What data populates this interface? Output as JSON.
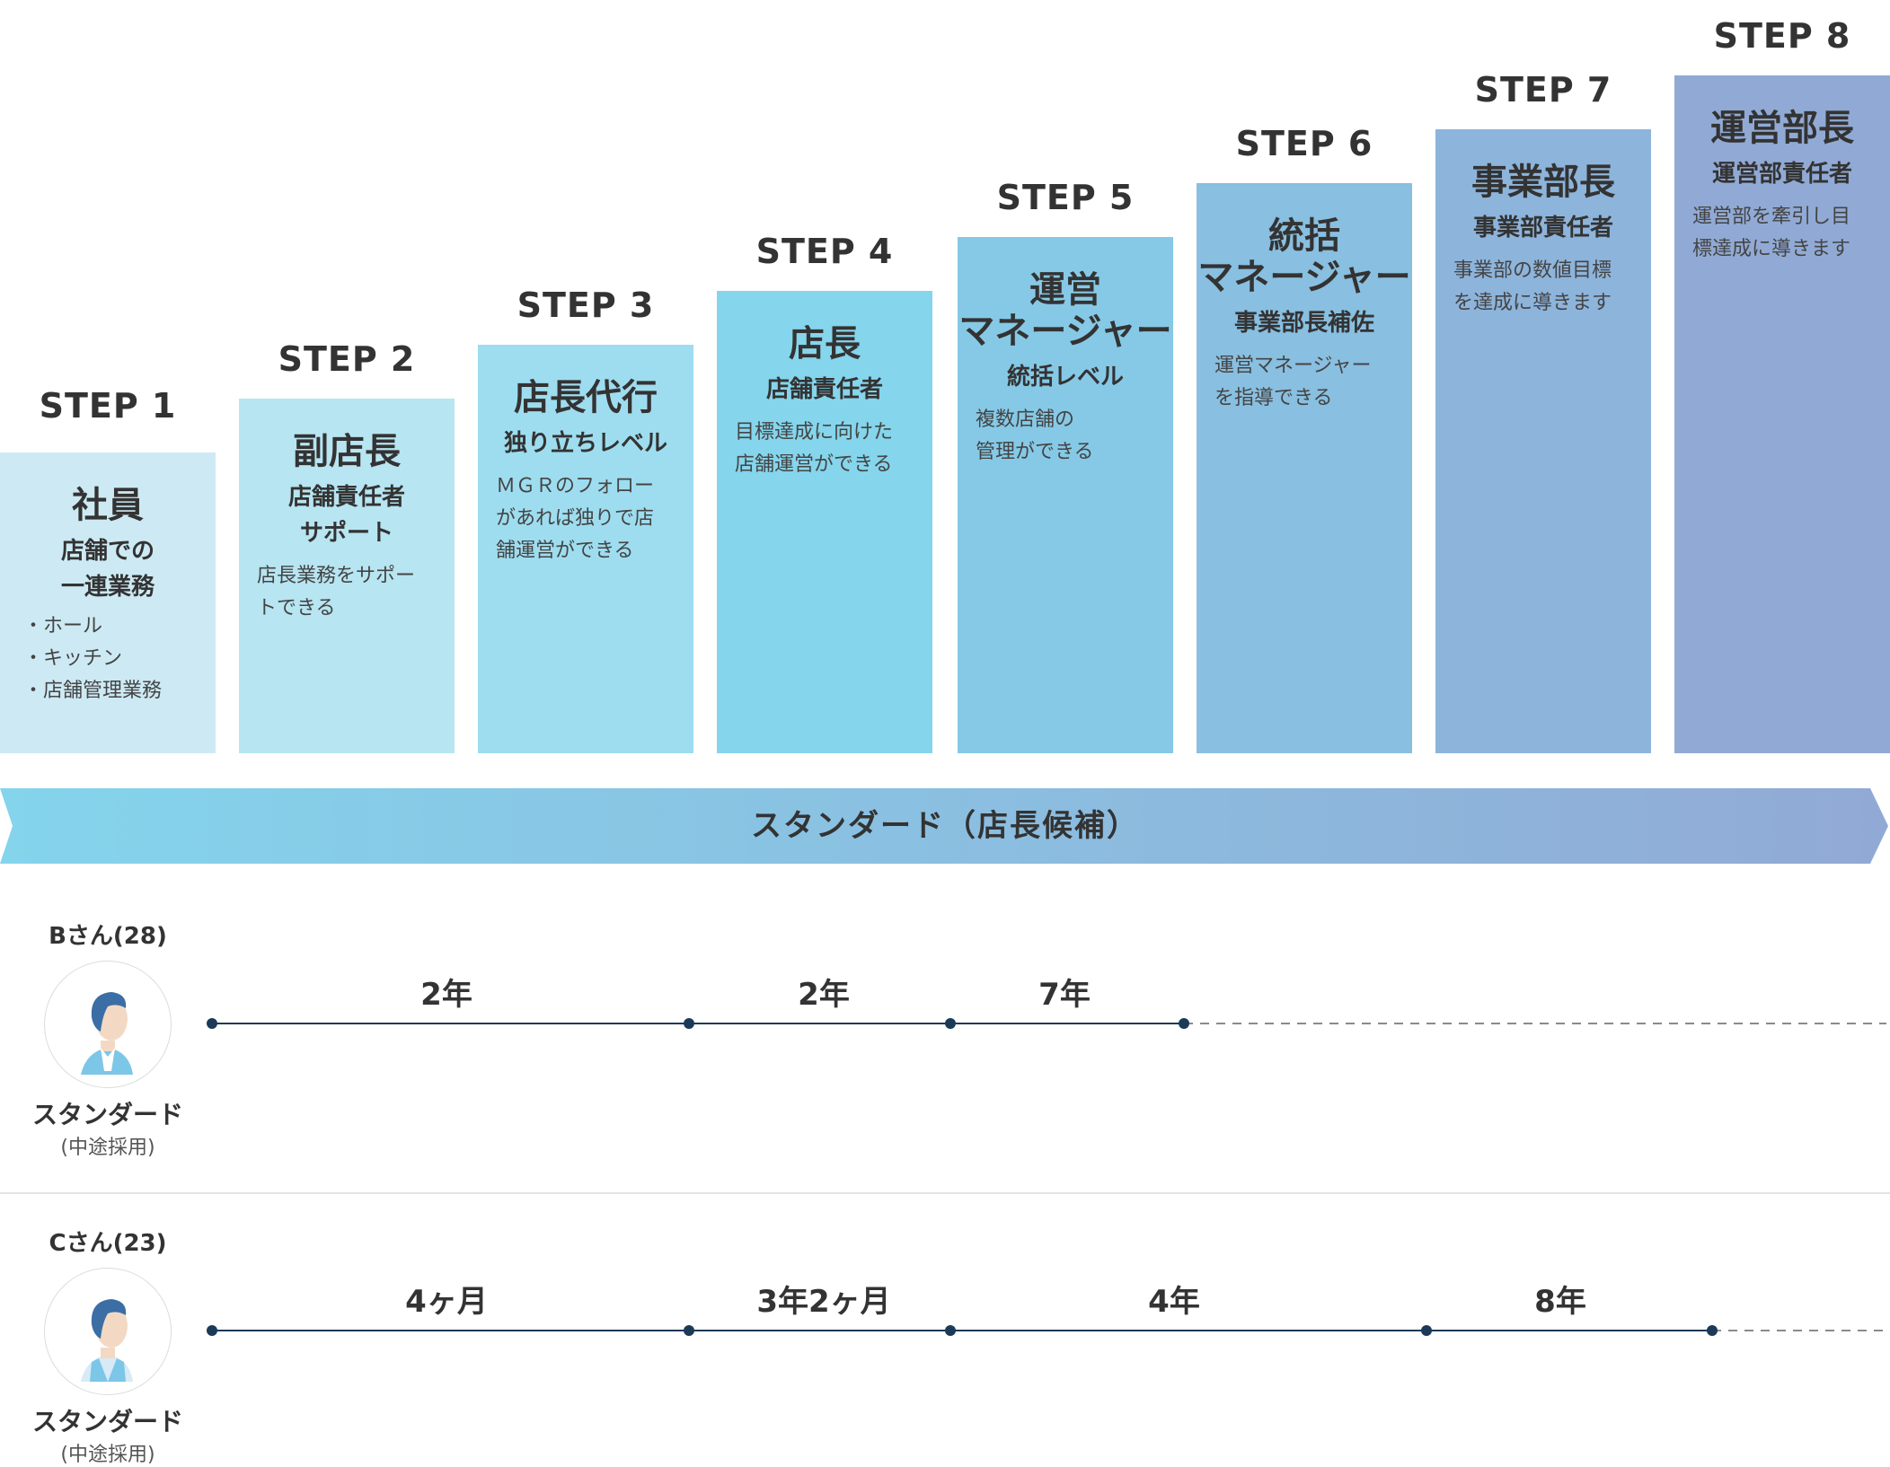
{
  "steps": [
    {
      "step": "STEP 1",
      "title": "社員",
      "subtitle_lines": [
        "店舗での",
        "一連業務"
      ],
      "desc_lines": [],
      "bullets": [
        "ホール",
        "キッチン",
        "店舗管理業務"
      ],
      "color": "#cdeaf4"
    },
    {
      "step": "STEP 2",
      "title": "副店長",
      "subtitle_lines": [
        "店舗責任者",
        "サポート"
      ],
      "desc_lines": [
        "店長業務をサポー",
        "トできる"
      ],
      "bullets": [],
      "color": "#b7e5f2"
    },
    {
      "step": "STEP 3",
      "title": "店長代行",
      "subtitle_lines": [
        "独り立ちレベル"
      ],
      "desc_lines": [
        "ＭＧＲのフォロー",
        "があれば独りで店",
        "舗運営ができる"
      ],
      "bullets": [],
      "color": "#9eddef"
    },
    {
      "step": "STEP 4",
      "title": "店長",
      "subtitle_lines": [
        "店舗責任者"
      ],
      "desc_lines": [
        "目標達成に向けた",
        "店舗運営ができる"
      ],
      "bullets": [],
      "color": "#85d5ec"
    },
    {
      "step": "STEP 5",
      "title_lines": [
        "運営",
        "マネージャー"
      ],
      "subtitle_lines": [
        "統括レベル"
      ],
      "desc_lines": [
        "複数店舗の",
        "管理ができる"
      ],
      "bullets": [],
      "color": "#86c9e6"
    },
    {
      "step": "STEP 6",
      "title_lines": [
        "統括",
        "マネージャー"
      ],
      "subtitle_lines": [
        "事業部長補佐"
      ],
      "desc_lines": [
        "運営マネージャー",
        "を指導できる"
      ],
      "bullets": [],
      "color": "#89bfe0"
    },
    {
      "step": "STEP 7",
      "title": "事業部長",
      "subtitle_lines": [
        "事業部責任者"
      ],
      "desc_lines": [
        "事業部の数値目標",
        "を達成に導きます"
      ],
      "bullets": [],
      "color": "#8db4db"
    },
    {
      "step": "STEP 8",
      "title": "運営部長",
      "subtitle_lines": [
        "運営部責任者"
      ],
      "desc_lines": [
        "運営部を牽引し目",
        "標達成に導きます"
      ],
      "bullets": [],
      "color": "#91aad5"
    }
  ],
  "ribbon": {
    "label": "スタンダード（店長候補）",
    "color_start": "#84d4ec",
    "color_end": "#91aad5"
  },
  "people": [
    {
      "name": "Bさん(28)",
      "type": "スタンダード",
      "sub": "(中途採用)",
      "segments": [
        "2年",
        "2年",
        "7年"
      ]
    },
    {
      "name": "Cさん(23)",
      "type": "スタンダード",
      "sub": "(中途採用)",
      "segments": [
        "4ヶ月",
        "3年2ヶ月",
        "4年",
        "8年"
      ]
    }
  ],
  "colors": {
    "timeline": "#1b3a57",
    "dashed": "#8a8a8a",
    "hair": "#3b6ea5",
    "skin": "#f3d9c4",
    "uniform": "#7cc6e8"
  }
}
